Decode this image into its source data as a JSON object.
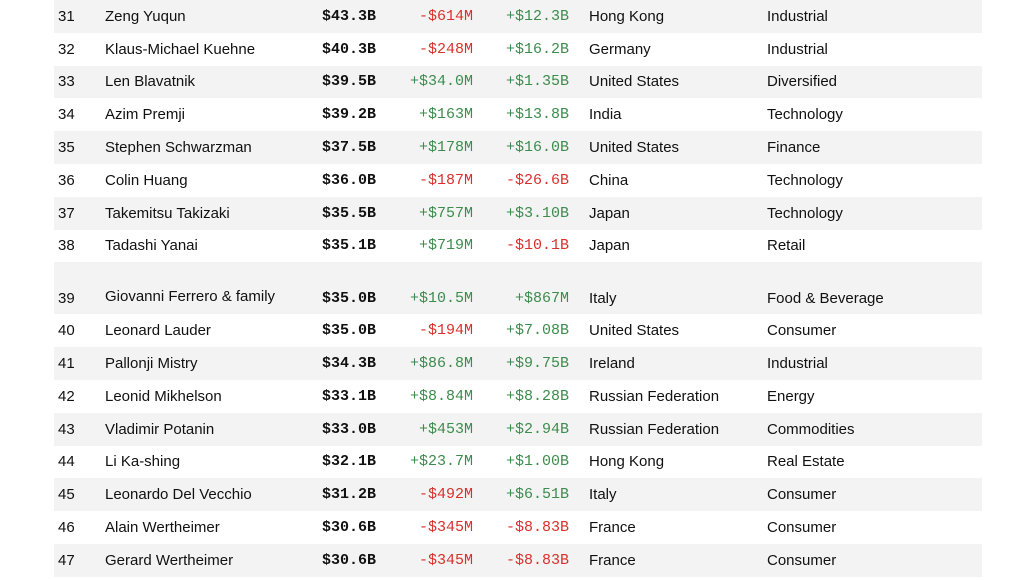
{
  "table": {
    "rows": [
      {
        "rank": "31",
        "name": "Zeng Yuqun",
        "net_worth": "$43.3B",
        "last_change": "-$614M",
        "ytd_change": "+$12.3B",
        "country": "Hong Kong",
        "industry": "Industrial"
      },
      {
        "rank": "32",
        "name": "Klaus-Michael Kuehne",
        "net_worth": "$40.3B",
        "last_change": "-$248M",
        "ytd_change": "+$16.2B",
        "country": "Germany",
        "industry": "Industrial"
      },
      {
        "rank": "33",
        "name": "Len Blavatnik",
        "net_worth": "$39.5B",
        "last_change": "+$34.0M",
        "ytd_change": "+$1.35B",
        "country": "United States",
        "industry": "Diversified"
      },
      {
        "rank": "34",
        "name": "Azim Premji",
        "net_worth": "$39.2B",
        "last_change": "+$163M",
        "ytd_change": "+$13.8B",
        "country": "India",
        "industry": "Technology"
      },
      {
        "rank": "35",
        "name": "Stephen Schwarzman",
        "net_worth": "$37.5B",
        "last_change": "+$178M",
        "ytd_change": "+$16.0B",
        "country": "United States",
        "industry": "Finance"
      },
      {
        "rank": "36",
        "name": "Colin Huang",
        "net_worth": "$36.0B",
        "last_change": "-$187M",
        "ytd_change": "-$26.6B",
        "country": "China",
        "industry": "Technology"
      },
      {
        "rank": "37",
        "name": "Takemitsu Takizaki",
        "net_worth": "$35.5B",
        "last_change": "+$757M",
        "ytd_change": "+$3.10B",
        "country": "Japan",
        "industry": "Technology"
      },
      {
        "rank": "38",
        "name": "Tadashi Yanai",
        "net_worth": "$35.1B",
        "last_change": "+$719M",
        "ytd_change": "-$10.1B",
        "country": "Japan",
        "industry": "Retail"
      },
      {
        "rank": "39",
        "name": "Giovanni Ferrero & family",
        "net_worth": "$35.0B",
        "last_change": "+$10.5M",
        "ytd_change": "+$867M",
        "country": "Italy",
        "industry": "Food & Beverage"
      },
      {
        "rank": "40",
        "name": "Leonard Lauder",
        "net_worth": "$35.0B",
        "last_change": "-$194M",
        "ytd_change": "+$7.08B",
        "country": "United States",
        "industry": "Consumer"
      },
      {
        "rank": "41",
        "name": "Pallonji Mistry",
        "net_worth": "$34.3B",
        "last_change": "+$86.8M",
        "ytd_change": "+$9.75B",
        "country": "Ireland",
        "industry": "Industrial"
      },
      {
        "rank": "42",
        "name": "Leonid Mikhelson",
        "net_worth": "$33.1B",
        "last_change": "+$8.84M",
        "ytd_change": "+$8.28B",
        "country": "Russian Federation",
        "industry": "Energy"
      },
      {
        "rank": "43",
        "name": "Vladimir Potanin",
        "net_worth": "$33.0B",
        "last_change": "+$453M",
        "ytd_change": "+$2.94B",
        "country": "Russian Federation",
        "industry": "Commodities"
      },
      {
        "rank": "44",
        "name": "Li Ka-shing",
        "net_worth": "$32.1B",
        "last_change": "+$23.7M",
        "ytd_change": "+$1.00B",
        "country": "Hong Kong",
        "industry": "Real Estate"
      },
      {
        "rank": "45",
        "name": "Leonardo Del Vecchio",
        "net_worth": "$31.2B",
        "last_change": "-$492M",
        "ytd_change": "+$6.51B",
        "country": "Italy",
        "industry": "Consumer"
      },
      {
        "rank": "46",
        "name": "Alain Wertheimer",
        "net_worth": "$30.6B",
        "last_change": "-$345M",
        "ytd_change": "-$8.83B",
        "country": "France",
        "industry": "Consumer"
      },
      {
        "rank": "47",
        "name": "Gerard Wertheimer",
        "net_worth": "$30.6B",
        "last_change": "-$345M",
        "ytd_change": "-$8.83B",
        "country": "France",
        "industry": "Consumer"
      }
    ]
  },
  "colors": {
    "positive": "#3d8c4d",
    "negative": "#d9302b",
    "row_stripe": "#f3f3f3"
  }
}
